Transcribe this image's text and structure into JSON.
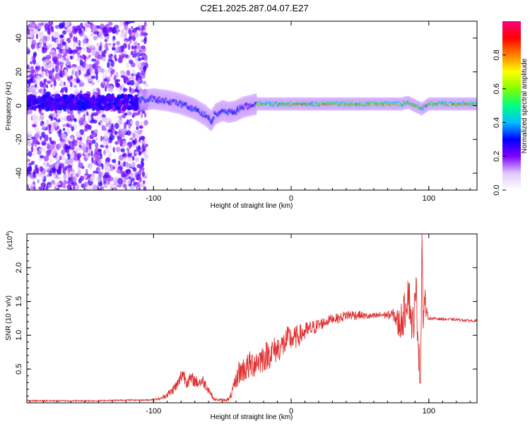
{
  "title": "C2E1.2025.287.04.07.E27",
  "chart_data": [
    {
      "type": "heatmap",
      "name": "spectrogram",
      "xlabel": "Height of straight line (km)",
      "ylabel": "Frequency (Hz)",
      "xlim": [
        -192,
        135
      ],
      "ylim": [
        -50,
        50
      ],
      "xticks": [
        -100,
        0,
        100
      ],
      "yticks": [
        -40,
        -20,
        0,
        20,
        40
      ],
      "colorbar": {
        "label": "Normalized spectral amplitude",
        "range": [
          0,
          1
        ],
        "ticks": [
          0.0,
          0.2,
          0.4,
          0.6,
          0.8
        ],
        "colormap": [
          "#ffffff",
          "#e0c8ff",
          "#8000ff",
          "#0000ff",
          "#00c0ff",
          "#00ff80",
          "#80ff00",
          "#ffff00",
          "#ff8000",
          "#ff0000",
          "#ff0080"
        ]
      },
      "ridge": {
        "x": [
          -192,
          -160,
          -130,
          -110,
          -100,
          -90,
          -80,
          -70,
          -62,
          -58,
          -55,
          -50,
          -45,
          -40,
          -35,
          -30,
          -25,
          -20,
          0,
          20,
          50,
          80,
          85,
          90,
          95,
          100,
          135
        ],
        "y": [
          2,
          2,
          2,
          3,
          4,
          3,
          1,
          -2,
          -6,
          -9,
          -5,
          -3,
          -4,
          -3,
          -1,
          0,
          1,
          1,
          1,
          1,
          1,
          1,
          2,
          0,
          -2,
          1,
          1
        ]
      }
    },
    {
      "type": "line",
      "name": "snr",
      "xlabel": "Height of straight line (km)",
      "ylabel": "SNR (10 * v/v)",
      "y_multiplier": "(x10",
      "y_multiplier_exp": "4",
      "y_multiplier_close": ")",
      "xlim": [
        -192,
        135
      ],
      "ylim": [
        0,
        2.5
      ],
      "xticks": [
        -100,
        0,
        100
      ],
      "yticks": [
        0.5,
        1.0,
        1.5,
        2.0
      ],
      "ytick_labels": [
        "0.5",
        "1.0",
        "1.5",
        "2.0"
      ],
      "series": [
        {
          "name": "SNR",
          "color": "#e03030",
          "x": [
            -192,
            -180,
            -160,
            -140,
            -120,
            -105,
            -95,
            -88,
            -82,
            -79,
            -76,
            -72,
            -68,
            -64,
            -60,
            -56,
            -50,
            -45,
            -42,
            -38,
            -34,
            -30,
            -26,
            -22,
            -18,
            -14,
            -10,
            -6,
            -2,
            2,
            6,
            10,
            15,
            20,
            25,
            30,
            35,
            40,
            45,
            50,
            55,
            60,
            65,
            70,
            75,
            78,
            82,
            85,
            88,
            91,
            93,
            94,
            95,
            96,
            97,
            98,
            100,
            110,
            120,
            135
          ],
          "y": [
            0.03,
            0.03,
            0.03,
            0.03,
            0.04,
            0.04,
            0.06,
            0.15,
            0.28,
            0.45,
            0.32,
            0.35,
            0.3,
            0.32,
            0.2,
            0.05,
            0.04,
            0.05,
            0.2,
            0.45,
            0.5,
            0.55,
            0.6,
            0.65,
            0.7,
            0.75,
            0.8,
            0.85,
            0.95,
            0.95,
            1.0,
            1.05,
            1.1,
            1.15,
            1.2,
            1.25,
            1.25,
            1.3,
            1.3,
            1.3,
            1.28,
            1.28,
            1.3,
            1.3,
            1.3,
            1.15,
            1.3,
            1.7,
            1.1,
            1.6,
            0.6,
            0.3,
            2.45,
            1.1,
            1.6,
            1.35,
            1.25,
            1.24,
            1.23,
            1.21
          ],
          "noise": [
            0.01,
            0.01,
            0.01,
            0.01,
            0.01,
            0.01,
            0.02,
            0.06,
            0.1,
            0.12,
            0.1,
            0.1,
            0.09,
            0.09,
            0.07,
            0.02,
            0.02,
            0.03,
            0.1,
            0.18,
            0.2,
            0.22,
            0.22,
            0.22,
            0.22,
            0.22,
            0.2,
            0.2,
            0.2,
            0.18,
            0.16,
            0.15,
            0.12,
            0.1,
            0.08,
            0.07,
            0.07,
            0.08,
            0.08,
            0.06,
            0.05,
            0.05,
            0.05,
            0.06,
            0.1,
            0.25,
            0.3,
            0.35,
            0.3,
            0.35,
            0.3,
            0.2,
            0.2,
            0.3,
            0.2,
            0.1,
            0.02,
            0.02,
            0.02,
            0.02
          ]
        }
      ]
    }
  ]
}
